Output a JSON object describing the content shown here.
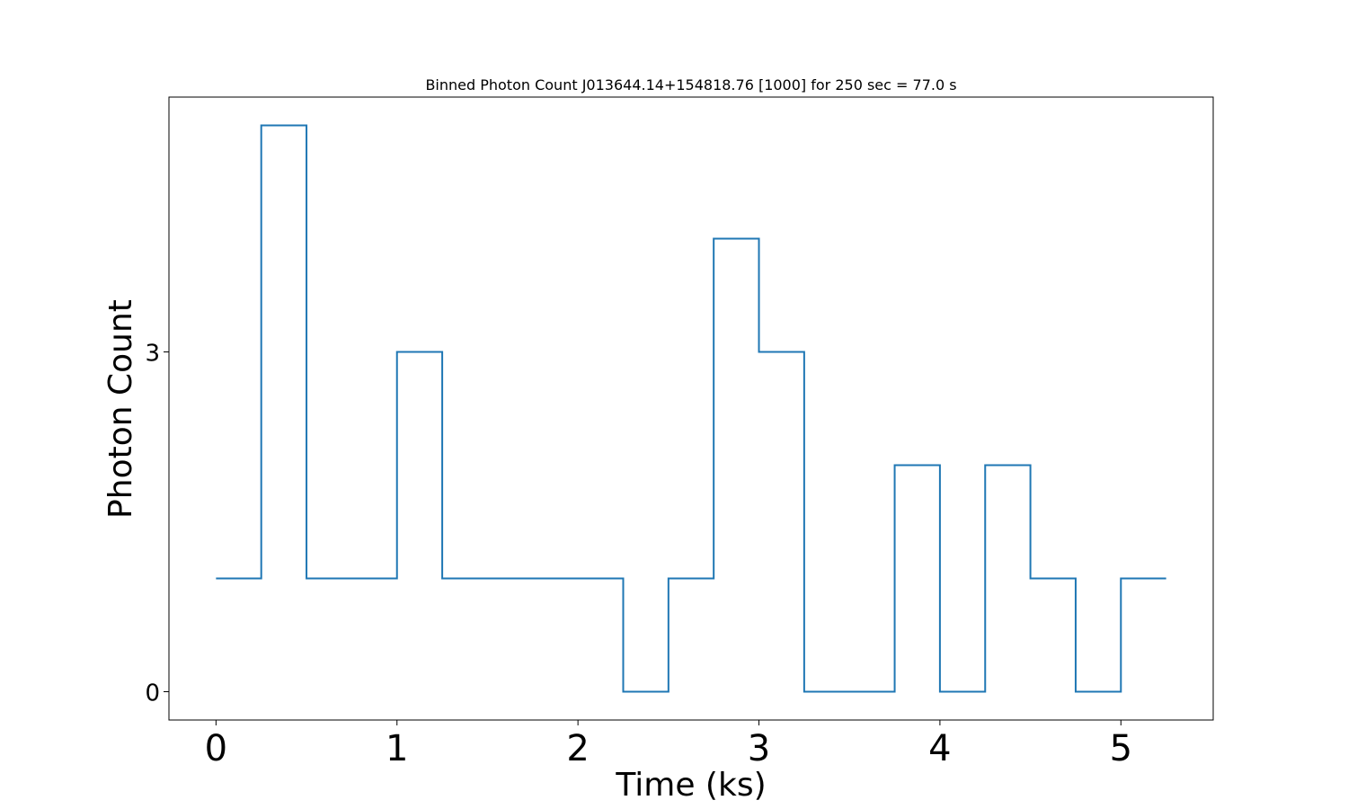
{
  "chart_data": {
    "type": "line",
    "drawstyle": "steps-post",
    "title": "Binned Photon Count J013644.14+154818.76 [1000] for 250 sec = 77.0 s",
    "xlabel": "Time (ks)",
    "ylabel": "Photon Count",
    "xlim": [
      -0.26,
      5.51
    ],
    "ylim": [
      -0.25,
      5.25
    ],
    "xticks": [
      0,
      1,
      2,
      3,
      4,
      5
    ],
    "yticks": [
      0,
      3
    ],
    "grid": false,
    "series": [
      {
        "color": "#1f77b4",
        "x": [
          0,
          0.25,
          0.5,
          0.75,
          1.0,
          1.25,
          1.5,
          1.75,
          2.0,
          2.25,
          2.5,
          2.75,
          3.0,
          3.25,
          3.5,
          3.75,
          4.0,
          4.25,
          4.5,
          4.75,
          5.0,
          5.25
        ],
        "y": [
          1,
          5,
          1,
          1,
          3,
          1,
          1,
          1,
          1,
          0,
          1,
          4,
          3,
          0,
          0,
          2,
          0,
          2,
          1,
          0,
          1,
          1
        ]
      }
    ]
  }
}
